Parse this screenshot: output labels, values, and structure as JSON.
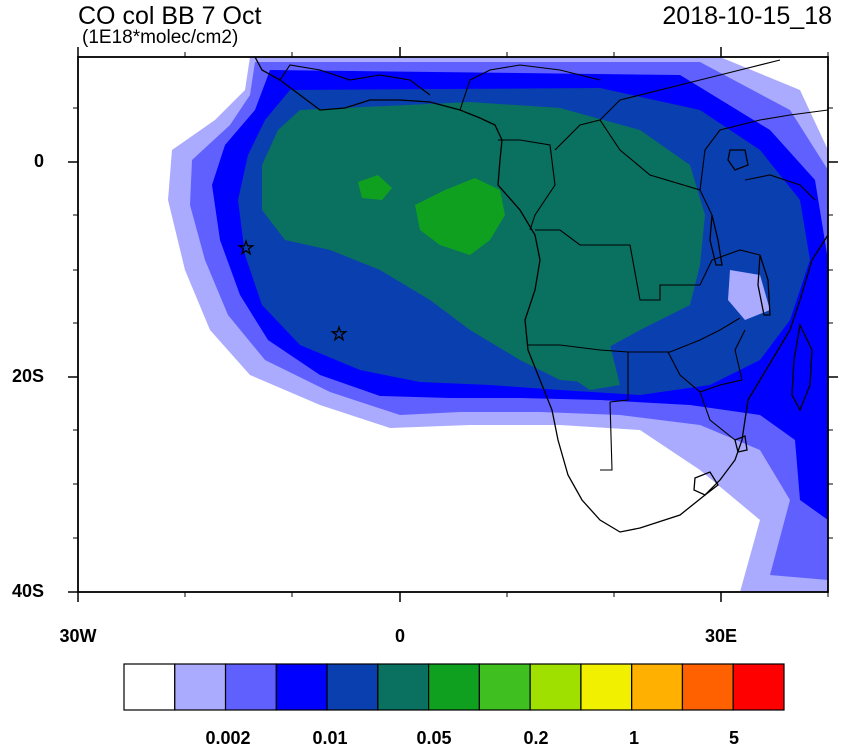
{
  "title": "CO col BB 7 Oct",
  "units": "(1E18*molec/cm2)",
  "timestamp": "2018-10-15_18",
  "chart_data": {
    "type": "heatmap",
    "title": "CO col BB 7 Oct",
    "subtitle": "(1E18*molec/cm2)",
    "timestamp": "2018-10-15_18",
    "projection": "lat-lon",
    "xlim": [
      -30,
      40
    ],
    "ylim": [
      -40,
      10
    ],
    "x_ticks": [
      -30,
      0,
      30
    ],
    "x_tick_labels": [
      "30W",
      "0",
      "30E"
    ],
    "y_ticks": [
      0,
      -20,
      -40
    ],
    "y_tick_labels": [
      "0",
      "20S",
      "40S"
    ],
    "colorbar": {
      "colors": [
        "#ffffff",
        "#aaaaff",
        "#6060ff",
        "#0000ff",
        "#0a3fb0",
        "#0a7060",
        "#10a020",
        "#40c020",
        "#a0e000",
        "#f0f000",
        "#ffb000",
        "#ff6000",
        "#ff0000"
      ],
      "tick_labels": [
        "0.002",
        "0.01",
        "0.05",
        "0.2",
        "1",
        "5"
      ]
    },
    "markers": [
      {
        "symbol": "star",
        "lon": -14.5,
        "lat": -8
      },
      {
        "symbol": "star",
        "lon": -5.7,
        "lat": -16
      }
    ]
  }
}
